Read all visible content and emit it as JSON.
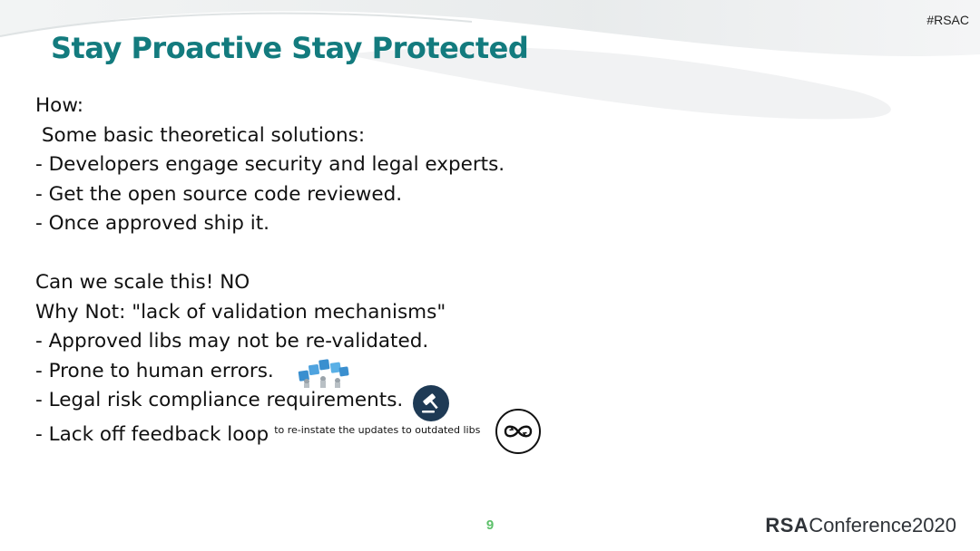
{
  "header": {
    "hashtag": "#RSAC"
  },
  "slide": {
    "title": "Stay Proactive Stay Protected",
    "lines": [
      "How:",
      " Some basic theoretical solutions:",
      "- Developers engage security and legal experts.",
      "- Get the open source code reviewed.",
      "- Once approved ship it.",
      "",
      "Can we scale this! NO",
      "Why Not: \"lack of validation mechanisms\"",
      "- Approved libs may not be re-validated.",
      "- Prone to human errors.",
      "- Legal risk compliance requirements.",
      "- Lack off feedback loop"
    ],
    "feedback_note": "to re-instate the updates to outdated libs"
  },
  "icons": {
    "people": "error-blocks-icon",
    "gavel": "gavel-icon",
    "loop": "infinity-loop-icon"
  },
  "colors": {
    "title": "#137b7e",
    "page_number": "#5cc06a",
    "gavel_badge": "#1e3a55"
  },
  "footer": {
    "page_number": "9",
    "brand_strong": "RSA",
    "brand_rest": "Conference2020"
  }
}
